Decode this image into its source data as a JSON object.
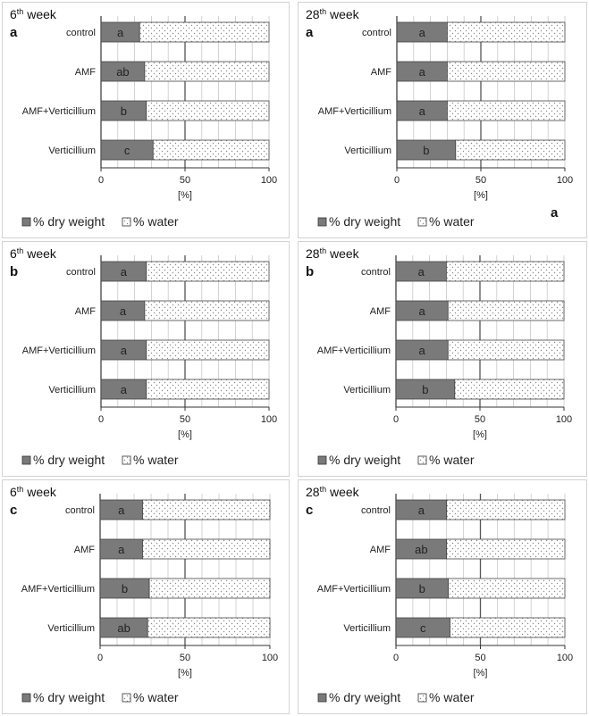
{
  "legend": {
    "dry_label": "% dry weight",
    "water_label": "% water"
  },
  "colors": {
    "dry": "#7a7a7a",
    "water_bg": "#ffffff",
    "water_dot": "#8a8a8a",
    "grid": "#8c8c8c",
    "border": "#333333"
  },
  "chart_data": [
    {
      "type": "bar",
      "stacked": true,
      "orientation": "horizontal",
      "panel_letter": "a",
      "week_prefix": "6",
      "week_sup": "th",
      "week_suffix": " week",
      "categories": [
        "control",
        "AMF",
        "AMF+Verticillium",
        "Verticillium"
      ],
      "series": [
        {
          "name": "% dry weight",
          "values": [
            23,
            26,
            27,
            31
          ]
        },
        {
          "name": "% water",
          "values": [
            77,
            74,
            73,
            69
          ]
        }
      ],
      "bar_labels": [
        "a",
        "ab",
        "b",
        "c"
      ],
      "xlabel": "[%]",
      "xlim": [
        0,
        100
      ],
      "xticks": [
        0,
        50,
        100
      ],
      "extra_letter": ""
    },
    {
      "type": "bar",
      "stacked": true,
      "orientation": "horizontal",
      "panel_letter": "a",
      "week_prefix": "28",
      "week_sup": "th",
      "week_suffix": " week",
      "categories": [
        "control",
        "AMF",
        "AMF+Verticillium",
        "Verticillium"
      ],
      "series": [
        {
          "name": "% dry weight",
          "values": [
            30,
            30,
            30,
            35
          ]
        },
        {
          "name": "% water",
          "values": [
            70,
            70,
            70,
            65
          ]
        }
      ],
      "bar_labels": [
        "a",
        "a",
        "a",
        "b"
      ],
      "xlabel": "[%]",
      "xlim": [
        0,
        100
      ],
      "xticks": [
        0,
        50,
        100
      ],
      "extra_letter": "a"
    },
    {
      "type": "bar",
      "stacked": true,
      "orientation": "horizontal",
      "panel_letter": "b",
      "week_prefix": "6",
      "week_sup": "th",
      "week_suffix": " week",
      "categories": [
        "control",
        "AMF",
        "AMF+Verticillium",
        "Verticillium"
      ],
      "series": [
        {
          "name": "% dry weight",
          "values": [
            27,
            26,
            27,
            27
          ]
        },
        {
          "name": "% water",
          "values": [
            73,
            74,
            73,
            73
          ]
        }
      ],
      "bar_labels": [
        "a",
        "a",
        "a",
        "a"
      ],
      "xlabel": "[%]",
      "xlim": [
        0,
        100
      ],
      "xticks": [
        0,
        50,
        100
      ],
      "extra_letter": ""
    },
    {
      "type": "bar",
      "stacked": true,
      "orientation": "horizontal",
      "panel_letter": "b",
      "week_prefix": "28",
      "week_sup": "th",
      "week_suffix": " week",
      "categories": [
        "control",
        "AMF",
        "AMF+Verticillium",
        "Verticillium"
      ],
      "series": [
        {
          "name": "% dry weight",
          "values": [
            30,
            31,
            31,
            35
          ]
        },
        {
          "name": "% water",
          "values": [
            70,
            69,
            69,
            65
          ]
        }
      ],
      "bar_labels": [
        "a",
        "a",
        "a",
        "b"
      ],
      "xlabel": "[%]",
      "xlim": [
        0,
        100
      ],
      "xticks": [
        0,
        50,
        100
      ],
      "extra_letter": ""
    },
    {
      "type": "bar",
      "stacked": true,
      "orientation": "horizontal",
      "panel_letter": "c",
      "week_prefix": "6",
      "week_sup": "th",
      "week_suffix": " week",
      "categories": [
        "control",
        "AMF",
        "AMF+Verticillium",
        "Verticillium"
      ],
      "series": [
        {
          "name": "% dry weight",
          "values": [
            25,
            25,
            29,
            28
          ]
        },
        {
          "name": "% water",
          "values": [
            75,
            75,
            71,
            72
          ]
        }
      ],
      "bar_labels": [
        "a",
        "a",
        "b",
        "ab"
      ],
      "xlabel": "[%]",
      "xlim": [
        0,
        100
      ],
      "xticks": [
        0,
        50,
        100
      ],
      "extra_letter": ""
    },
    {
      "type": "bar",
      "stacked": true,
      "orientation": "horizontal",
      "panel_letter": "c",
      "week_prefix": "28",
      "week_sup": "th",
      "week_suffix": " week",
      "categories": [
        "control",
        "AMF",
        "AMF+Verticillium",
        "Verticillium"
      ],
      "series": [
        {
          "name": "% dry weight",
          "values": [
            30,
            30,
            31,
            32
          ]
        },
        {
          "name": "% water",
          "values": [
            70,
            70,
            69,
            68
          ]
        }
      ],
      "bar_labels": [
        "a",
        "ab",
        "b",
        "c"
      ],
      "xlabel": "[%]",
      "xlim": [
        0,
        100
      ],
      "xticks": [
        0,
        50,
        100
      ],
      "extra_letter": ""
    }
  ]
}
